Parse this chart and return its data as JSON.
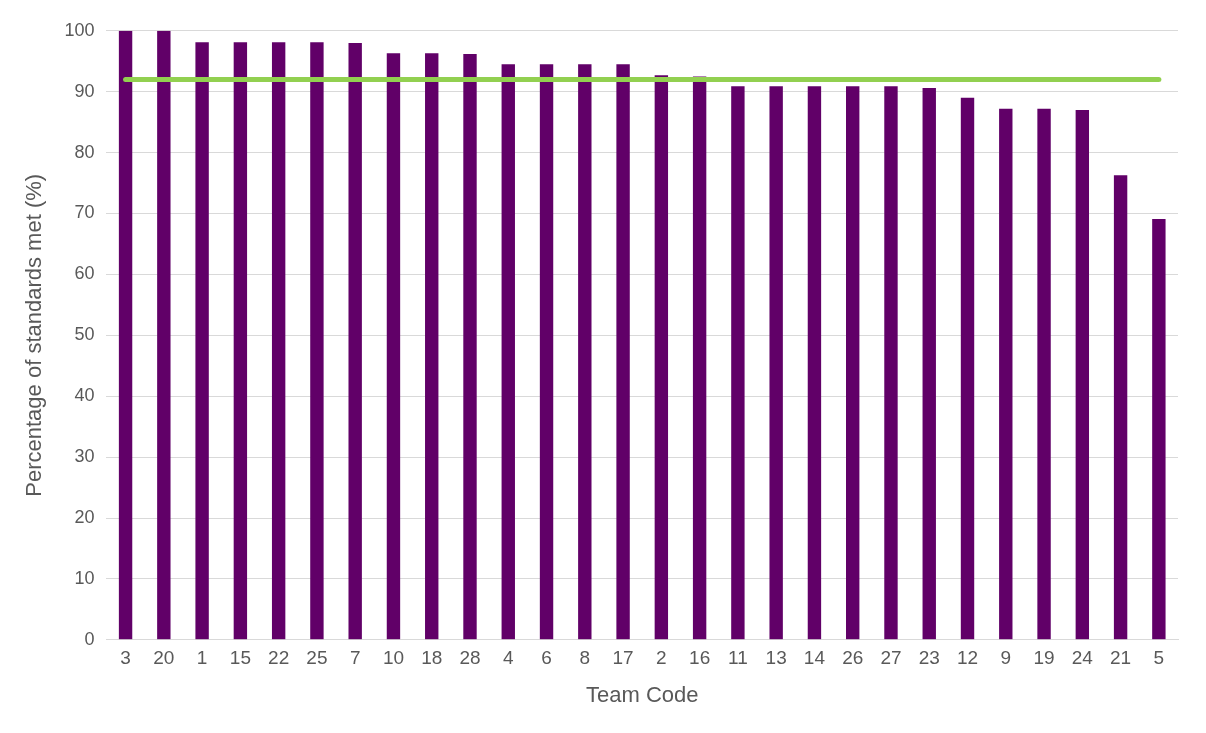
{
  "chart_data": {
    "type": "bar",
    "xlabel": "Team Code",
    "ylabel": "Percentage of standards met (%)",
    "categories": [
      "3",
      "20",
      "1",
      "15",
      "22",
      "25",
      "7",
      "10",
      "18",
      "28",
      "4",
      "6",
      "8",
      "17",
      "2",
      "16",
      "11",
      "13",
      "14",
      "26",
      "27",
      "23",
      "12",
      "9",
      "19",
      "24",
      "21",
      "5"
    ],
    "values": [
      100,
      100,
      98.1,
      98.1,
      98.1,
      98.1,
      98,
      96.3,
      96.3,
      96.2,
      94.5,
      94.5,
      94.5,
      94.5,
      92.7,
      92.5,
      90.9,
      90.9,
      90.9,
      90.9,
      90.9,
      90.6,
      89,
      87.2,
      87.2,
      87,
      76.3,
      69.1
    ],
    "color": "#610068",
    "ylim": [
      0,
      100
    ],
    "yticks": [
      0,
      10,
      20,
      30,
      40,
      50,
      60,
      70,
      80,
      90,
      100
    ],
    "grid": "y",
    "ref_lines": [
      {
        "axis": "y",
        "value": 92,
        "color": "#92d050"
      }
    ]
  }
}
